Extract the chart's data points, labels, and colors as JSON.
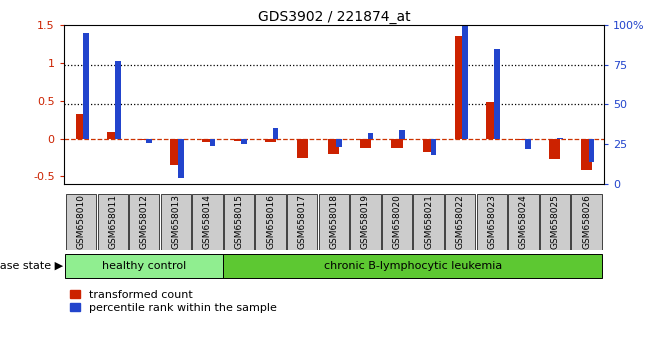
{
  "title": "GDS3902 / 221874_at",
  "samples": [
    "GSM658010",
    "GSM658011",
    "GSM658012",
    "GSM658013",
    "GSM658014",
    "GSM658015",
    "GSM658016",
    "GSM658017",
    "GSM658018",
    "GSM658019",
    "GSM658020",
    "GSM658021",
    "GSM658022",
    "GSM658023",
    "GSM658024",
    "GSM658025",
    "GSM658026"
  ],
  "red_values": [
    0.32,
    0.08,
    -0.02,
    -0.35,
    -0.04,
    -0.03,
    -0.05,
    -0.25,
    -0.2,
    -0.13,
    -0.12,
    -0.18,
    1.35,
    0.48,
    -0.02,
    -0.27,
    -0.42
  ],
  "blue_percentiles": [
    95,
    77,
    26,
    4,
    24,
    25,
    35,
    28,
    23,
    32,
    34,
    18,
    100,
    85,
    22,
    29,
    14
  ],
  "ylim_left": [
    -0.6,
    1.5
  ],
  "ylim_right": [
    0,
    100
  ],
  "yticks_left": [
    -0.5,
    0.0,
    0.5,
    1.0,
    1.5
  ],
  "ytick_labels_left": [
    "-0.5",
    "0",
    "0.5",
    "1",
    "1.5"
  ],
  "yticks_right": [
    0,
    25,
    50,
    75,
    100
  ],
  "ytick_labels_right": [
    "0",
    "25",
    "50",
    "75",
    "100%"
  ],
  "healthy_count": 5,
  "disease_count": 12,
  "healthy_color": "#90EE90",
  "disease_color": "#5DC832",
  "bar_color_red": "#CC2200",
  "bar_color_blue": "#2244CC",
  "hline_color": "#CC3300",
  "dotted_line_color": "#000000",
  "bg_color": "#FFFFFF",
  "tick_label_bg": "#CCCCCC",
  "ylabel_left_color": "#CC2200",
  "ylabel_right_color": "#2244CC",
  "disease_state_label": "disease state",
  "healthy_label": "healthy control",
  "disease_label": "chronic B-lymphocytic leukemia",
  "legend_red": "transformed count",
  "legend_blue": "percentile rank within the sample"
}
